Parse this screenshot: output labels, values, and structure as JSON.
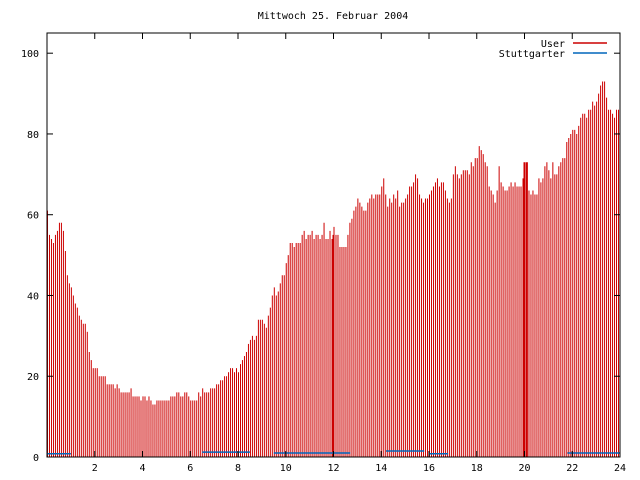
{
  "chart_data": {
    "type": "bar",
    "title": "Mittwoch 25. Februar 2004",
    "xlabel": "",
    "ylabel": "",
    "xlim": [
      0,
      24
    ],
    "ylim": [
      0,
      105
    ],
    "x_ticks": [
      2,
      4,
      6,
      8,
      10,
      12,
      14,
      16,
      18,
      20,
      22,
      24
    ],
    "y_ticks": [
      0,
      20,
      40,
      60,
      80,
      100
    ],
    "grid": false,
    "legend_position": "top-right",
    "series": [
      {
        "name": "User",
        "color": "#cc0000",
        "interval_minutes": 5,
        "values": [
          61,
          55,
          54,
          53,
          55,
          56,
          58,
          58,
          56,
          51,
          45,
          43,
          42,
          40,
          38,
          37,
          35,
          34,
          33,
          33,
          31,
          26,
          24,
          22,
          22,
          22,
          20,
          20,
          20,
          20,
          18,
          18,
          18,
          18,
          17,
          18,
          17,
          16,
          16,
          16,
          16,
          16,
          17,
          15,
          15,
          15,
          15,
          14,
          15,
          15,
          14,
          15,
          14,
          13,
          13,
          14,
          14,
          14,
          14,
          14,
          14,
          14,
          15,
          15,
          15,
          16,
          16,
          15,
          15,
          16,
          16,
          15,
          14,
          14,
          14,
          14,
          16,
          15,
          17,
          16,
          16,
          16,
          17,
          17,
          17,
          18,
          18,
          19,
          19,
          20,
          20,
          21,
          22,
          22,
          21,
          22,
          21,
          23,
          24,
          25,
          26,
          28,
          29,
          30,
          29,
          30,
          34,
          34,
          34,
          33,
          32,
          35,
          37,
          40,
          42,
          40,
          41,
          43,
          45,
          45,
          48,
          50,
          53,
          53,
          52,
          53,
          53,
          53,
          55,
          56,
          54,
          55,
          55,
          56,
          54,
          55,
          55,
          54,
          55,
          58,
          54,
          54,
          56,
          54,
          57,
          55,
          55,
          52,
          52,
          52,
          52,
          55,
          58,
          59,
          61,
          62,
          64,
          63,
          62,
          61,
          61,
          63,
          64,
          65,
          64,
          65,
          65,
          65,
          67,
          69,
          65,
          62,
          64,
          63,
          65,
          64,
          66,
          62,
          63,
          63,
          64,
          65,
          67,
          67,
          68,
          70,
          69,
          65,
          64,
          63,
          64,
          64,
          65,
          66,
          67,
          68,
          69,
          67,
          68,
          68,
          66,
          64,
          63,
          64,
          70,
          72,
          70,
          69,
          70,
          71,
          71,
          71,
          70,
          73,
          72,
          74,
          74,
          77,
          76,
          75,
          73,
          72,
          67,
          66,
          65,
          63,
          66,
          72,
          68,
          67,
          66,
          66,
          67,
          68,
          67,
          68,
          67,
          67,
          67,
          69,
          68,
          67,
          66,
          65,
          66,
          65,
          65,
          69,
          68,
          69,
          72,
          73,
          71,
          69,
          73,
          70,
          70,
          72,
          73,
          74,
          74,
          78,
          79,
          80,
          81,
          81,
          80,
          82,
          84,
          85,
          85,
          84,
          86,
          86,
          88,
          87,
          88,
          90,
          92,
          93,
          93,
          89,
          86,
          86,
          85,
          84,
          86,
          86,
          88,
          87,
          84,
          78,
          75,
          74,
          74,
          74,
          75,
          76,
          76,
          77,
          75,
          77,
          78,
          78,
          76,
          77,
          74,
          71,
          69,
          66
        ]
      },
      {
        "name": "Stuttgarter",
        "color": "#0066bb",
        "interval_minutes": 5,
        "segments": [
          {
            "from": 0.0,
            "to": 1.0,
            "value": 0.8
          },
          {
            "from": 6.5,
            "to": 8.5,
            "value": 1.2
          },
          {
            "from": 9.5,
            "to": 12.7,
            "value": 1.0
          },
          {
            "from": 14.2,
            "to": 15.8,
            "value": 1.5
          },
          {
            "from": 16.0,
            "to": 16.8,
            "value": 0.8
          },
          {
            "from": 21.8,
            "to": 24.0,
            "value": 1.0
          }
        ]
      }
    ],
    "spikes": [
      {
        "x": 12.0,
        "value": 55,
        "color": "#cc0000"
      },
      {
        "x": 20.0,
        "value": 73,
        "color": "#cc0000"
      },
      {
        "x": 20.1,
        "value": 73,
        "color": "#cc0000"
      }
    ]
  }
}
